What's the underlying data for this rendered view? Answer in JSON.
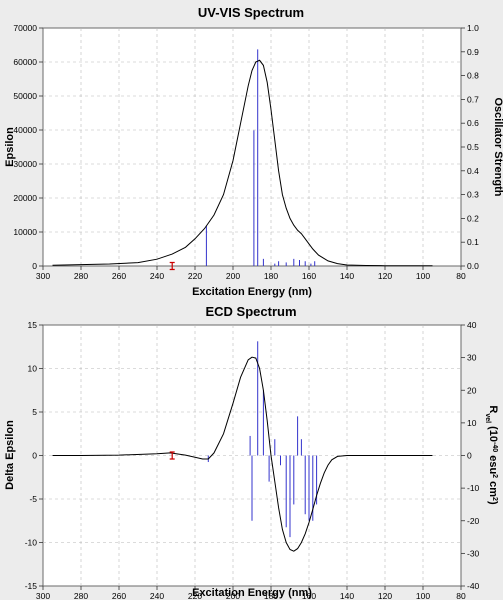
{
  "chart_data": [
    {
      "type": "line",
      "title": "UV-VIS Spectrum",
      "xlabel": "Excitation Energy (nm)",
      "ylabel": "Epsilon",
      "y2label": "Oscillator Strength",
      "xlim": [
        300,
        80
      ],
      "ylim": [
        0,
        70000
      ],
      "y2lim": [
        0,
        1.0
      ],
      "xticks": [
        "300",
        "280",
        "260",
        "240",
        "220",
        "200",
        "180",
        "160",
        "140",
        "120",
        "100",
        "80"
      ],
      "yticks": [
        "0",
        "10000",
        "20000",
        "30000",
        "40000",
        "50000",
        "60000",
        "70000"
      ],
      "y2ticks": [
        "0.0",
        "0.1",
        "0.2",
        "0.3",
        "0.4",
        "0.5",
        "0.6",
        "0.7",
        "0.8",
        "0.9",
        "1.0"
      ],
      "grid": true,
      "curve": {
        "x": [
          295,
          280,
          265,
          250,
          240,
          232,
          225,
          220,
          215,
          210,
          205,
          200,
          196,
          192,
          190,
          188,
          186,
          184,
          182,
          180,
          178,
          176,
          174,
          172,
          170,
          168,
          166,
          164,
          162,
          160,
          158,
          155,
          150,
          145,
          140,
          130,
          120,
          110,
          95
        ],
        "y": [
          200,
          400,
          600,
          1000,
          2000,
          3500,
          5500,
          8000,
          11000,
          15000,
          21000,
          31000,
          42000,
          53000,
          57500,
          60000,
          60500,
          59000,
          54000,
          46000,
          37000,
          28000,
          21000,
          17000,
          14000,
          12000,
          10500,
          9500,
          8000,
          6500,
          5000,
          3200,
          1500,
          700,
          300,
          150,
          100,
          80,
          60
        ]
      },
      "sticks": {
        "x": [
          214,
          189,
          187,
          184,
          178,
          176,
          172,
          168,
          165,
          162,
          159,
          157
        ],
        "y2": [
          0.17,
          0.57,
          0.91,
          0.03,
          0.01,
          0.02,
          0.015,
          0.03,
          0.025,
          0.02,
          0.01,
          0.02
        ]
      },
      "cursor_x": 232
    },
    {
      "type": "line",
      "title": "ECD Spectrum",
      "xlabel": "Excitation Energy (nm)",
      "ylabel": "Delta Epsilon",
      "y2label_parts": [
        "R",
        "vel",
        " (10",
        "-40",
        " esu",
        "2",
        " cm",
        "2",
        ")"
      ],
      "xlim": [
        300,
        80
      ],
      "ylim": [
        -15,
        15
      ],
      "y2lim": [
        -40,
        40
      ],
      "xticks": [
        "300",
        "280",
        "260",
        "240",
        "220",
        "200",
        "180",
        "160",
        "140",
        "120",
        "100",
        "80"
      ],
      "yticks": [
        "-15",
        "-10",
        "-5",
        "0",
        "5",
        "10",
        "15"
      ],
      "y2ticks": [
        "-40",
        "-30",
        "-20",
        "-10",
        "0",
        "10",
        "20",
        "30",
        "40"
      ],
      "grid": true,
      "curve": {
        "x": [
          295,
          280,
          260,
          240,
          233,
          225,
          220,
          216,
          213,
          210,
          205,
          200,
          196,
          192,
          190,
          188,
          186,
          184,
          182,
          180,
          178,
          176,
          174,
          172,
          170,
          168,
          166,
          164,
          162,
          160,
          158,
          156,
          154,
          152,
          150,
          148,
          145,
          140,
          130,
          110,
          95
        ],
        "y": [
          0,
          0,
          0.05,
          0.2,
          0.3,
          0.05,
          -0.2,
          -0.4,
          -0.4,
          0.3,
          2.5,
          6,
          9,
          11,
          11.3,
          11.2,
          10,
          7.5,
          4,
          0,
          -3,
          -6,
          -8.5,
          -10,
          -10.8,
          -11,
          -10.7,
          -10,
          -9,
          -7.7,
          -6.2,
          -4.6,
          -3.2,
          -2,
          -1.1,
          -0.5,
          -0.1,
          0,
          0,
          0,
          0
        ]
      },
      "sticks": {
        "x": [
          213,
          191,
          190,
          187,
          184,
          181,
          178,
          175,
          172,
          170,
          168,
          166,
          164,
          162,
          160,
          158,
          156
        ],
        "y2": [
          -2,
          6,
          -20,
          35,
          20,
          -8,
          5,
          -3,
          -22,
          -25,
          -15,
          12,
          5,
          -18,
          -20,
          -20,
          -15
        ]
      },
      "cursor_x": 232
    }
  ]
}
